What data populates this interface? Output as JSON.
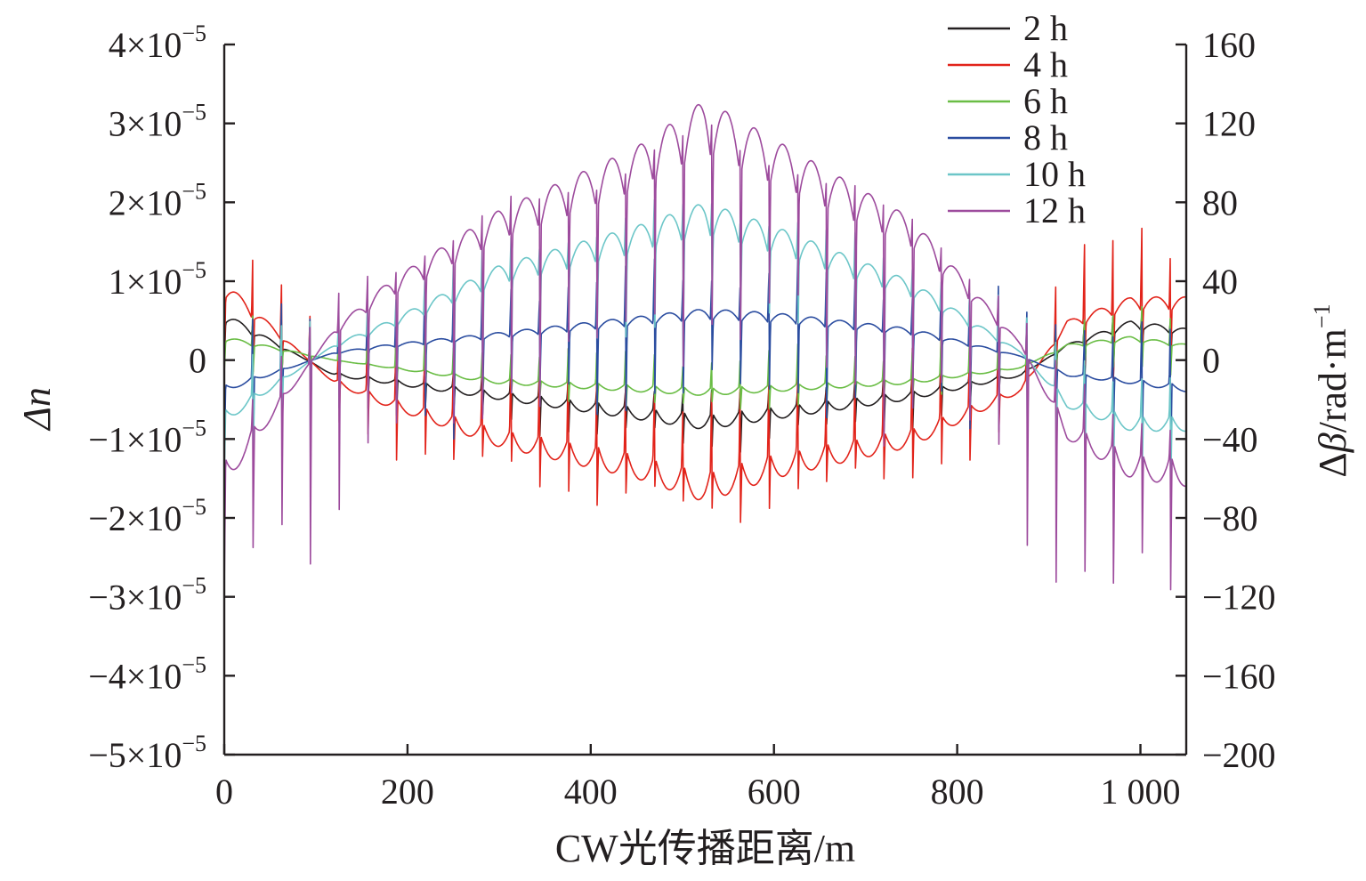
{
  "chart_data": {
    "type": "line",
    "xlabel": "CW光传播距离/m",
    "ylabel_left": "Δn",
    "ylabel_right_prefix": "Δβ",
    "ylabel_right_suffix": "/rad·m",
    "ylabel_right_exp": "−1",
    "xlim": [
      0,
      1050
    ],
    "ylim_left": [
      -5e-05,
      4e-05
    ],
    "ylim_right": [
      -200,
      160
    ],
    "x_ticks": [
      {
        "value": 0,
        "label": "0"
      },
      {
        "value": 200,
        "label": "200"
      },
      {
        "value": 400,
        "label": "400"
      },
      {
        "value": 600,
        "label": "600"
      },
      {
        "value": 800,
        "label": "800"
      },
      {
        "value": 1000,
        "label": "1 000"
      }
    ],
    "left_ticks": [
      {
        "value": 4e-05,
        "mant": "4×10",
        "exp": "−5"
      },
      {
        "value": 3e-05,
        "mant": "3×10",
        "exp": "−5"
      },
      {
        "value": 2e-05,
        "mant": "2×10",
        "exp": "−5"
      },
      {
        "value": 1e-05,
        "mant": "1×10",
        "exp": "−5"
      },
      {
        "value": 0,
        "mant": "0",
        "exp": ""
      },
      {
        "value": -1e-05,
        "mant": "−1×10",
        "exp": "−5"
      },
      {
        "value": -2e-05,
        "mant": "−2×10",
        "exp": "−5"
      },
      {
        "value": -3e-05,
        "mant": "−3×10",
        "exp": "−5"
      },
      {
        "value": -4e-05,
        "mant": "−4×10",
        "exp": "−5"
      },
      {
        "value": -5e-05,
        "mant": "−5×10",
        "exp": "−5"
      }
    ],
    "right_ticks": [
      {
        "value": 160,
        "label": "160"
      },
      {
        "value": 120,
        "label": "120"
      },
      {
        "value": 80,
        "label": "80"
      },
      {
        "value": 40,
        "label": "40"
      },
      {
        "value": 0,
        "label": "0"
      },
      {
        "value": -40,
        "label": "−40"
      },
      {
        "value": -80,
        "label": "−80"
      },
      {
        "value": -120,
        "label": "−120"
      },
      {
        "value": -160,
        "label": "−160"
      },
      {
        "value": -200,
        "label": "−200"
      }
    ],
    "legend_position": "top-right",
    "grid": false,
    "x_unit_factor": 1e-06,
    "period_m": 31.3,
    "series": [
      {
        "name": "2 h",
        "color": "#231f20",
        "envelope": [
          [
            0,
            0.6
          ],
          [
            120,
            -0.2
          ],
          [
            180,
            -0.3
          ],
          [
            300,
            -0.5
          ],
          [
            450,
            -0.75
          ],
          [
            525,
            -0.88
          ],
          [
            600,
            -0.75
          ],
          [
            750,
            -0.5
          ],
          [
            870,
            -0.2
          ],
          [
            920,
            0.2
          ],
          [
            990,
            0.5
          ],
          [
            1050,
            0.4
          ]
        ],
        "spike_up": 0.3,
        "spike_down": 0.6
      },
      {
        "name": "4 h",
        "color": "#e2231a",
        "envelope": [
          [
            0,
            1.0
          ],
          [
            120,
            -0.3
          ],
          [
            180,
            -0.6
          ],
          [
            300,
            -1.1
          ],
          [
            450,
            -1.5
          ],
          [
            525,
            -1.8
          ],
          [
            600,
            -1.5
          ],
          [
            750,
            -1.1
          ],
          [
            870,
            -0.4
          ],
          [
            920,
            0.5
          ],
          [
            990,
            0.8
          ],
          [
            1050,
            0.8
          ]
        ],
        "spike_up": 1.2,
        "spike_down": 0.9
      },
      {
        "name": "6 h",
        "color": "#6abd45",
        "envelope": [
          [
            0,
            0.3
          ],
          [
            120,
            0.0
          ],
          [
            180,
            -0.1
          ],
          [
            300,
            -0.3
          ],
          [
            450,
            -0.4
          ],
          [
            525,
            -0.45
          ],
          [
            600,
            -0.4
          ],
          [
            750,
            -0.3
          ],
          [
            870,
            -0.1
          ],
          [
            920,
            0.2
          ],
          [
            990,
            0.3
          ],
          [
            1050,
            0.2
          ]
        ],
        "spike_up": 0.5,
        "spike_down": 0.4
      },
      {
        "name": "8 h",
        "color": "#2b4da0",
        "envelope": [
          [
            0,
            -0.4
          ],
          [
            120,
            0.1
          ],
          [
            180,
            0.2
          ],
          [
            300,
            0.35
          ],
          [
            450,
            0.55
          ],
          [
            525,
            0.65
          ],
          [
            600,
            0.6
          ],
          [
            750,
            0.4
          ],
          [
            870,
            0.05
          ],
          [
            920,
            -0.2
          ],
          [
            990,
            -0.3
          ],
          [
            1050,
            -0.4
          ]
        ],
        "spike_up": 0.9,
        "spike_down": 1.3
      },
      {
        "name": "10 h",
        "color": "#6cc6c8",
        "envelope": [
          [
            0,
            -0.8
          ],
          [
            120,
            0.2
          ],
          [
            180,
            0.5
          ],
          [
            300,
            1.2
          ],
          [
            450,
            1.7
          ],
          [
            525,
            2.0
          ],
          [
            600,
            1.7
          ],
          [
            750,
            1.0
          ],
          [
            870,
            0.1
          ],
          [
            920,
            -0.6
          ],
          [
            990,
            -0.9
          ],
          [
            1050,
            -0.9
          ]
        ],
        "spike_up": 0.7,
        "spike_down": 1.4
      },
      {
        "name": "12 h",
        "color": "#9d4b9d",
        "envelope": [
          [
            0,
            -1.6
          ],
          [
            120,
            0.4
          ],
          [
            180,
            1.0
          ],
          [
            300,
            1.9
          ],
          [
            450,
            2.7
          ],
          [
            525,
            3.3
          ],
          [
            600,
            2.8
          ],
          [
            750,
            1.8
          ],
          [
            870,
            0.2
          ],
          [
            920,
            -1.0
          ],
          [
            990,
            -1.5
          ],
          [
            1050,
            -1.6
          ]
        ],
        "spike_up": 0.6,
        "spike_down": 2.8
      }
    ]
  }
}
